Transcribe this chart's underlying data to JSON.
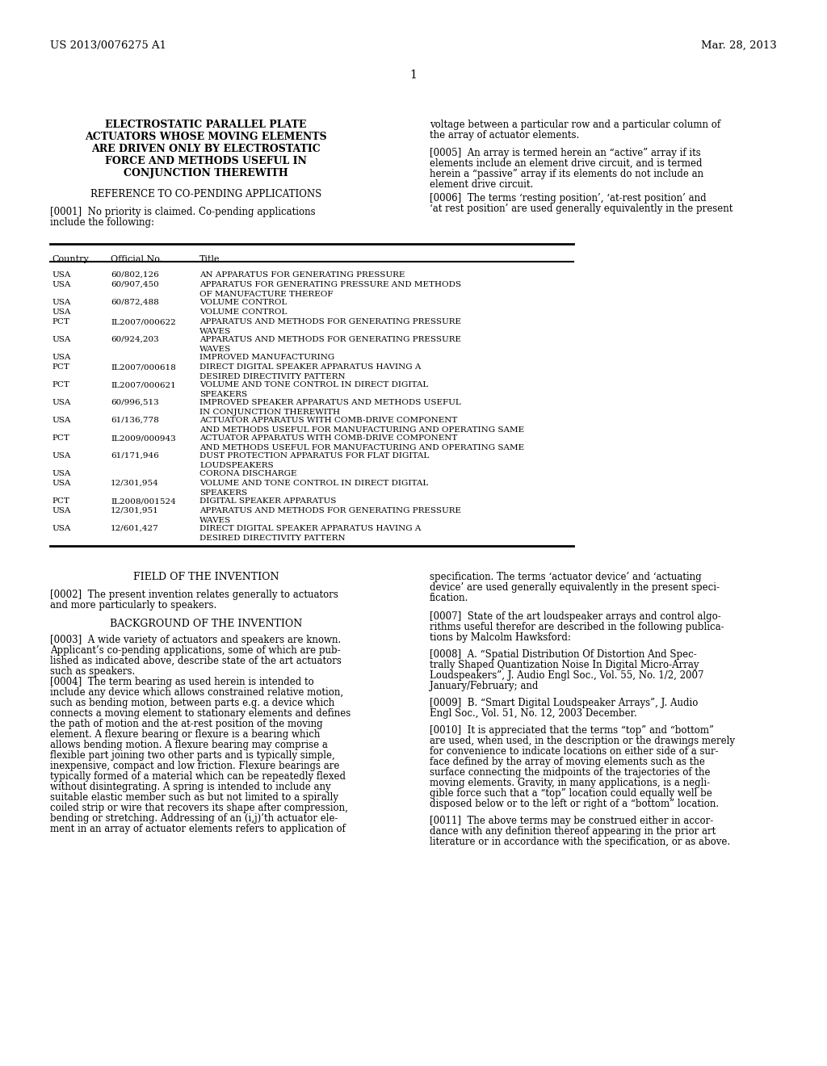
{
  "bg_color": "#ffffff",
  "patent_number": "US 2013/0076275 A1",
  "patent_date": "Mar. 28, 2013",
  "page_number": "1",
  "title_lines": [
    "ELECTROSTATIC PARALLEL PLATE",
    "ACTUATORS WHOSE MOVING ELEMENTS",
    "ARE DRIVEN ONLY BY ELECTROSTATIC",
    "FORCE AND METHODS USEFUL IN",
    "CONJUNCTION THEREWITH"
  ],
  "ref_heading": "REFERENCE TO CO-PENDING APPLICATIONS",
  "table_rows": [
    [
      "USA",
      "60/802,126",
      "AN APPARATUS FOR GENERATING PRESSURE"
    ],
    [
      "USA",
      "60/907,450",
      "APPARATUS FOR GENERATING PRESSURE AND METHODS\nOF MANUFACTURE THEREOF"
    ],
    [
      "USA",
      "60/872,488",
      "VOLUME CONTROL"
    ],
    [
      "USA",
      "",
      "VOLUME CONTROL"
    ],
    [
      "PCT",
      "IL2007/000622",
      "APPARATUS AND METHODS FOR GENERATING PRESSURE\nWAVES"
    ],
    [
      "USA",
      "60/924,203",
      "APPARATUS AND METHODS FOR GENERATING PRESSURE\nWAVES"
    ],
    [
      "USA",
      "",
      "IMPROVED MANUFACTURING"
    ],
    [
      "PCT",
      "IL2007/000618",
      "DIRECT DIGITAL SPEAKER APPARATUS HAVING A\nDESIRED DIRECTIVITY PATTERN"
    ],
    [
      "PCT",
      "IL2007/000621",
      "VOLUME AND TONE CONTROL IN DIRECT DIGITAL\nSPEAKERS"
    ],
    [
      "USA",
      "60/996,513",
      "IMPROVED SPEAKER APPARATUS AND METHODS USEFUL\nIN CONJUNCTION THEREWITH"
    ],
    [
      "USA",
      "61/136,778",
      "ACTUATOR APPARATUS WITH COMB-DRIVE COMPONENT\nAND METHODS USEFUL FOR MANUFACTURING AND OPERATING SAME"
    ],
    [
      "PCT",
      "IL2009/000943",
      "ACTUATOR APPARATUS WITH COMB-DRIVE COMPONENT\nAND METHODS USEFUL FOR MANUFACTURING AND OPERATING SAME"
    ],
    [
      "USA",
      "61/171,946",
      "DUST PROTECTION APPARATUS FOR FLAT DIGITAL\nLOUDSPEAKERS"
    ],
    [
      "USA",
      "",
      "CORONA DISCHARGE"
    ],
    [
      "USA",
      "12/301,954",
      "VOLUME AND TONE CONTROL IN DIRECT DIGITAL\nSPEAKERS"
    ],
    [
      "PCT",
      "IL2008/001524",
      "DIGITAL SPEAKER APPARATUS"
    ],
    [
      "USA",
      "12/301,951",
      "APPARATUS AND METHODS FOR GENERATING PRESSURE\nWAVES"
    ],
    [
      "USA",
      "12/601,427",
      "DIRECT DIGITAL SPEAKER APPARATUS HAVING A\nDESIRED DIRECTIVITY PATTERN"
    ]
  ],
  "right_col_top_lines": [
    "voltage between a particular row and a particular column of",
    "the array of actuator elements."
  ],
  "para_0005_lines": [
    "[0005]  An array is termed herein an “active” array if its",
    "elements include an element drive circuit, and is termed",
    "herein a “passive” array if its elements do not include an",
    "element drive circuit."
  ],
  "para_0006_lines": [
    "[0006]  The terms ‘resting position’, ‘at-rest position’ and",
    "‘at rest position’ are used generally equivalently in the present"
  ],
  "field_heading": "FIELD OF THE INVENTION",
  "para_0002_lines": [
    "[0002]  The present invention relates generally to actuators",
    "and more particularly to speakers."
  ],
  "background_heading": "BACKGROUND OF THE INVENTION",
  "para_0003_lines": [
    "[0003]  A wide variety of actuators and speakers are known.",
    "Applicant’s co-pending applications, some of which are pub-",
    "lished as indicated above, describe state of the art actuators",
    "such as speakers."
  ],
  "para_0004_lines": [
    "[0004]  The term bearing as used herein is intended to",
    "include any device which allows constrained relative motion,",
    "such as bending motion, between parts e.g. a device which",
    "connects a moving element to stationary elements and defines",
    "the path of motion and the at-rest position of the moving",
    "element. A flexure bearing or flexure is a bearing which",
    "allows bending motion. A flexure bearing may comprise a",
    "flexible part joining two other parts and is typically simple,",
    "inexpensive, compact and low friction. Flexure bearings are",
    "typically formed of a material which can be repeatedly flexed",
    "without disintegrating. A spring is intended to include any",
    "suitable elastic member such as but not limited to a spirally",
    "coiled strip or wire that recovers its shape after compression,",
    "bending or stretching. Addressing of an (i,j)’th actuator ele-",
    "ment in an array of actuator elements refers to application of"
  ],
  "spec_lines": [
    "specification. The terms ‘actuator device’ and ‘actuating",
    "device’ are used generally equivalently in the present speci-",
    "fication."
  ],
  "para_0007_lines": [
    "[0007]  State of the art loudspeaker arrays and control algo-",
    "rithms useful therefor are described in the following publica-",
    "tions by Malcolm Hawksford:"
  ],
  "para_0008_lines": [
    "[0008]  A. “Spatial Distribution Of Distortion And Spec-",
    "trally Shaped Quantization Noise In Digital Micro-Array",
    "Loudspeakers”, J. Audio Engl Soc., Vol. 55, No. 1/2, 2007",
    "January/February; and"
  ],
  "para_0009_lines": [
    "[0009]  B. “Smart Digital Loudspeaker Arrays”, J. Audio",
    "Engl Soc., Vol. 51, No. 12, 2003 December."
  ],
  "para_0010_lines": [
    "[0010]  It is appreciated that the terms “top” and “bottom”",
    "are used, when used, in the description or the drawings merely",
    "for convenience to indicate locations on either side of a sur-",
    "face defined by the array of moving elements such as the",
    "surface connecting the midpoints of the trajectories of the",
    "moving elements. Gravity, in many applications, is a negli-",
    "gible force such that a “top” location could equally well be",
    "disposed below or to the left or right of a “bottom” location."
  ],
  "para_0011_lines": [
    "[0011]  The above terms may be construed either in accor-",
    "dance with any definition thereof appearing in the prior art",
    "literature or in accordance with the specification, or as above."
  ]
}
